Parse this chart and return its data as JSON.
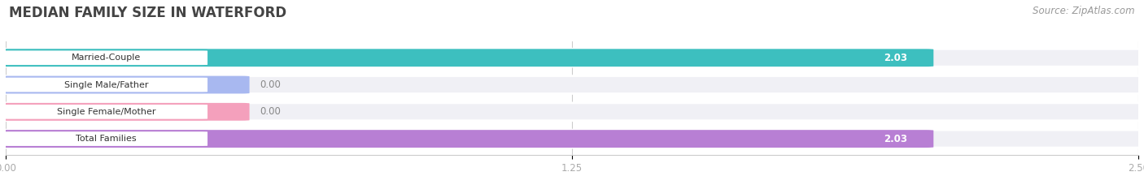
{
  "title": "MEDIAN FAMILY SIZE IN WATERFORD",
  "source": "Source: ZipAtlas.com",
  "categories": [
    "Married-Couple",
    "Single Male/Father",
    "Single Female/Mother",
    "Total Families"
  ],
  "values": [
    2.03,
    0.0,
    0.0,
    2.03
  ],
  "bar_colors": [
    "#3dbfbf",
    "#a8b8f0",
    "#f4a0bc",
    "#b87fd4"
  ],
  "label_border_colors": [
    "#3dbfbf",
    "#a8b8f0",
    "#f4a0bc",
    "#b87fd4"
  ],
  "xlim_max": 2.5,
  "xticks": [
    0.0,
    1.25,
    2.5
  ],
  "background_color": "#ffffff",
  "row_bg_color": "#f0f0f5",
  "bar_bg_color": "#f0f0f5",
  "title_fontsize": 12,
  "source_fontsize": 8.5,
  "value_label_color_nonzero": "#ffffff",
  "value_label_color_zero": "#888888",
  "grid_color": "#cccccc",
  "tick_color": "#aaaaaa",
  "label_pill_facecolor": "#ffffff"
}
